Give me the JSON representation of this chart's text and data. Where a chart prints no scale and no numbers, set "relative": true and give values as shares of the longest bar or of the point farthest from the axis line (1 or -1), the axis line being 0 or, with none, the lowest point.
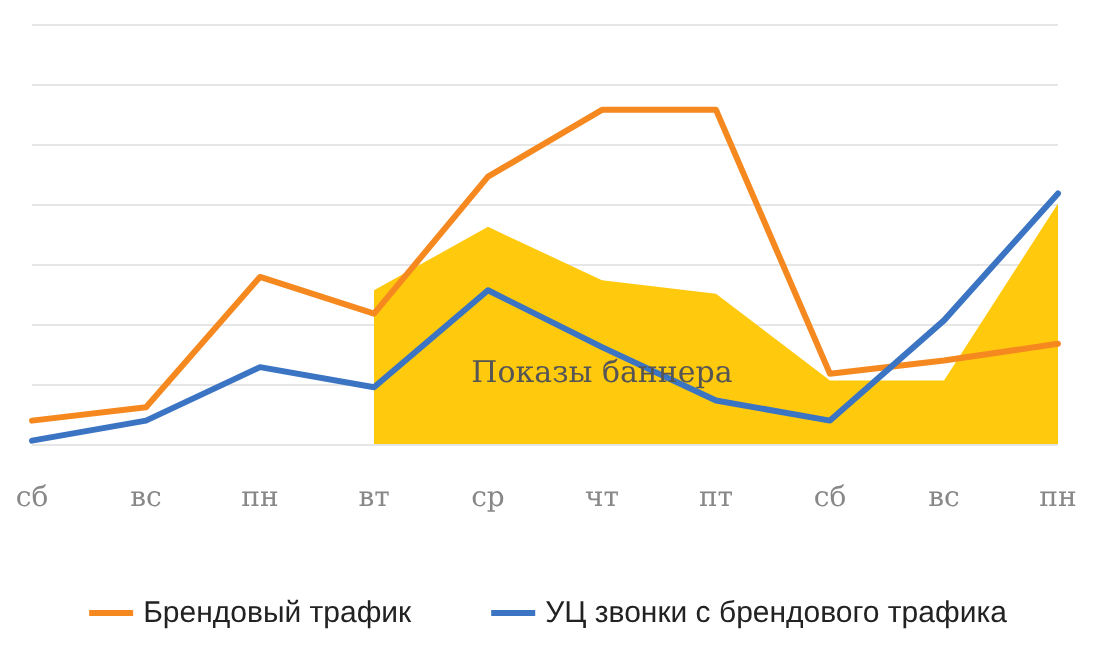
{
  "chart_data": {
    "type": "line",
    "relative": true,
    "grid": "y",
    "legend": "bottom",
    "marker": "none",
    "line_style": "solid",
    "categories": [
      "сб",
      "вс",
      "пн",
      "вт",
      "ср",
      "чт",
      "пт",
      "сб",
      "вс",
      "пн"
    ],
    "series": [
      {
        "name": "Показы баннера",
        "type": "area",
        "color": "#ffc90e",
        "values": [
          null,
          null,
          null,
          0.46,
          0.65,
          0.49,
          0.45,
          0.19,
          0.19,
          0.72
        ]
      },
      {
        "name": "Брендовый трафик",
        "color": "#f5891f",
        "values": [
          0.07,
          0.11,
          0.5,
          0.39,
          0.8,
          1,
          1,
          0.21,
          0.25,
          0.3
        ]
      },
      {
        "name": "УЦ звонки с брендового трафика",
        "color": "#3b74c3",
        "values": [
          0.01,
          0.07,
          0.23,
          0.17,
          0.46,
          0.29,
          0.13,
          0.07,
          0.37,
          0.75
        ]
      }
    ]
  }
}
